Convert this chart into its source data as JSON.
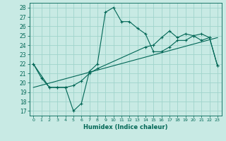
{
  "xlabel": "Humidex (Indice chaleur)",
  "background_color": "#c8eae4",
  "grid_color": "#a0d4cc",
  "line_color": "#006655",
  "xlim": [
    -0.5,
    23.5
  ],
  "ylim": [
    16.5,
    28.5
  ],
  "yticks": [
    17,
    18,
    19,
    20,
    21,
    22,
    23,
    24,
    25,
    26,
    27,
    28
  ],
  "xticks": [
    0,
    1,
    2,
    3,
    4,
    5,
    6,
    7,
    8,
    9,
    10,
    11,
    12,
    13,
    14,
    15,
    16,
    17,
    18,
    19,
    20,
    21,
    22,
    23
  ],
  "series1_x": [
    0,
    1,
    2,
    3,
    4,
    5,
    6,
    7,
    8,
    9,
    10,
    11,
    12,
    13,
    14,
    15,
    16,
    17,
    18,
    19,
    20,
    21,
    22,
    23
  ],
  "series1_y": [
    22,
    20.5,
    19.5,
    19.5,
    19.5,
    17,
    17.8,
    21.2,
    22.0,
    27.5,
    28,
    26.5,
    26.5,
    25.8,
    25.2,
    23.3,
    23.3,
    23.8,
    24.5,
    24.5,
    25.0,
    25.2,
    24.8,
    21.8
  ],
  "series2_x": [
    0,
    2,
    3,
    4,
    5,
    6,
    7,
    8,
    14,
    15,
    16,
    17,
    18,
    19,
    20,
    21,
    22,
    23
  ],
  "series2_y": [
    22,
    19.5,
    19.5,
    19.5,
    19.7,
    20.2,
    21.0,
    21.5,
    23.8,
    24.0,
    24.8,
    25.5,
    24.8,
    25.2,
    25.0,
    24.5,
    24.8,
    21.8
  ],
  "series3_x": [
    0,
    23
  ],
  "series3_y": [
    19.5,
    24.8
  ]
}
